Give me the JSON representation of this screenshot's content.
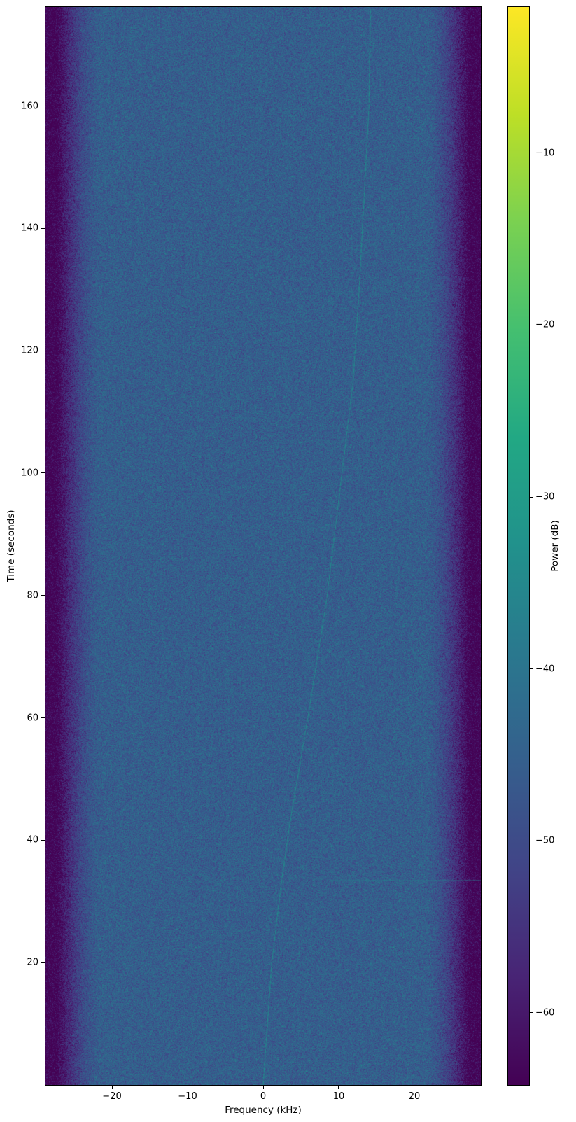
{
  "figure": {
    "background": "#ffffff"
  },
  "chart_data": {
    "type": "heatmap",
    "subtype": "spectrogram",
    "title": "",
    "xlabel": "Frequency (kHz)",
    "ylabel": "Time (seconds)",
    "xlim": [
      -28.8,
      28.8
    ],
    "ylim": [
      0,
      176.2
    ],
    "grid": false,
    "xticks": {
      "values": [
        -20,
        -10,
        0,
        10,
        20
      ],
      "labels": [
        "−20",
        "−10",
        "0",
        "10",
        "20"
      ]
    },
    "yticks": {
      "values": [
        20,
        40,
        60,
        80,
        100,
        120,
        140,
        160
      ],
      "labels": [
        "20",
        "40",
        "60",
        "80",
        "100",
        "120",
        "140",
        "160"
      ]
    },
    "colorbar": {
      "label": "Power (dB)",
      "tick_values": [
        -10,
        -20,
        -30,
        -40,
        -50,
        -60
      ],
      "tick_labels": [
        "−10",
        "−20",
        "−30",
        "−40",
        "−50",
        "−60"
      ],
      "vmin": -64.2,
      "vmax": -1.5,
      "colormap": "viridis",
      "colormap_stops": [
        "#440154",
        "#482475",
        "#414487",
        "#355f8d",
        "#2a788e",
        "#21918c",
        "#22a884",
        "#44bf70",
        "#7ad151",
        "#bddf26",
        "#fde725"
      ]
    },
    "background_noise": {
      "passband_level_db": -45.5,
      "noise_sigma_db": 3.4,
      "passband_halfwidth_khz": 21.5,
      "edge_halfwidth_khz": 27.3,
      "edge_floor_db": -64.2
    },
    "signals": {
      "drifting_carrier": {
        "description": "narrowband carrier drifting upward in frequency over time",
        "level_db": -32,
        "color": "#21918c",
        "points_time_freq": [
          [
            0,
            0.0
          ],
          [
            19.5,
            1.1
          ],
          [
            33,
            2.4
          ],
          [
            42.5,
            3.5
          ],
          [
            60,
            5.9
          ],
          [
            79.3,
            8.4
          ],
          [
            97.7,
            10.2
          ],
          [
            114.9,
            11.9
          ],
          [
            130,
            12.7
          ],
          [
            143.7,
            13.3
          ],
          [
            160,
            14.0
          ],
          [
            176,
            14.2
          ]
        ]
      },
      "horizontal_interference": {
        "description": "brief wideband horizontal line",
        "time_s": 33.5,
        "freq_start_khz": 8.8,
        "freq_end_khz": 28.8,
        "level_db": -36,
        "color": "#25848e"
      }
    }
  }
}
